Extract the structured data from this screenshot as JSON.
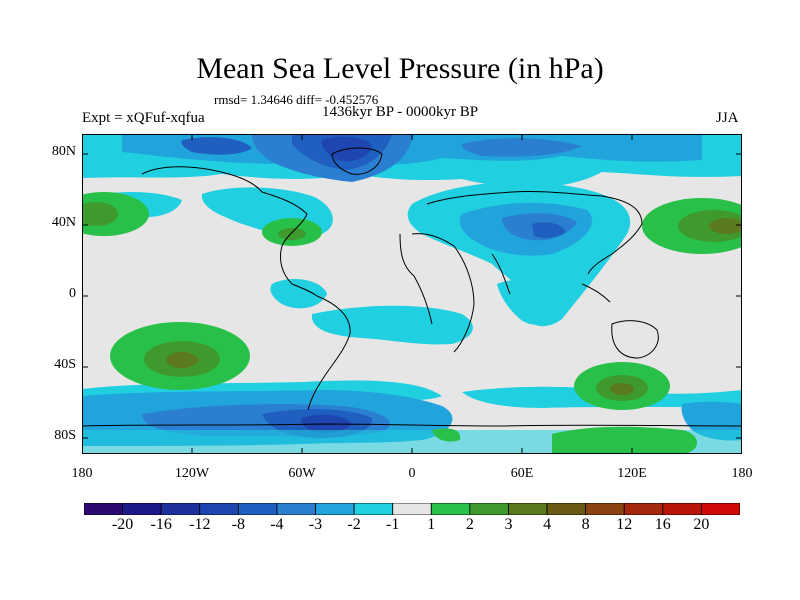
{
  "title": "Mean Sea Level Pressure (in hPa)",
  "stats": "rmsd= 1.34646  diff= -0.452576",
  "experiment": "Expt = xQFuf-xqfua",
  "period": "1436kyr BP - 0000kyr BP",
  "season": "JJA",
  "map": {
    "projection": "cylindrical-equidistant",
    "lon_range": [
      -180,
      180
    ],
    "lat_range": [
      -90,
      90
    ],
    "y_ticks": [
      "80N",
      "40N",
      "0",
      "40S",
      "80S"
    ],
    "x_ticks": [
      "180",
      "120W",
      "60W",
      "0",
      "60E",
      "120E",
      "180"
    ]
  },
  "colorbar": {
    "labels": [
      "-20",
      "-16",
      "-12",
      "-8",
      "-4",
      "-3",
      "-2",
      "-1",
      "1",
      "2",
      "3",
      "4",
      "8",
      "12",
      "16",
      "20"
    ],
    "colors": [
      "#2a0a6e",
      "#1c1a8a",
      "#1e2f9e",
      "#1f46b0",
      "#1f5fc0",
      "#2b7fd0",
      "#21a4dc",
      "#20d0e0",
      "#e6e6e6",
      "#29c04a",
      "#3f9a2e",
      "#5a7a1e",
      "#6a5a14",
      "#8a4210",
      "#a4280c",
      "#b8140a",
      "#d00a06"
    ]
  }
}
